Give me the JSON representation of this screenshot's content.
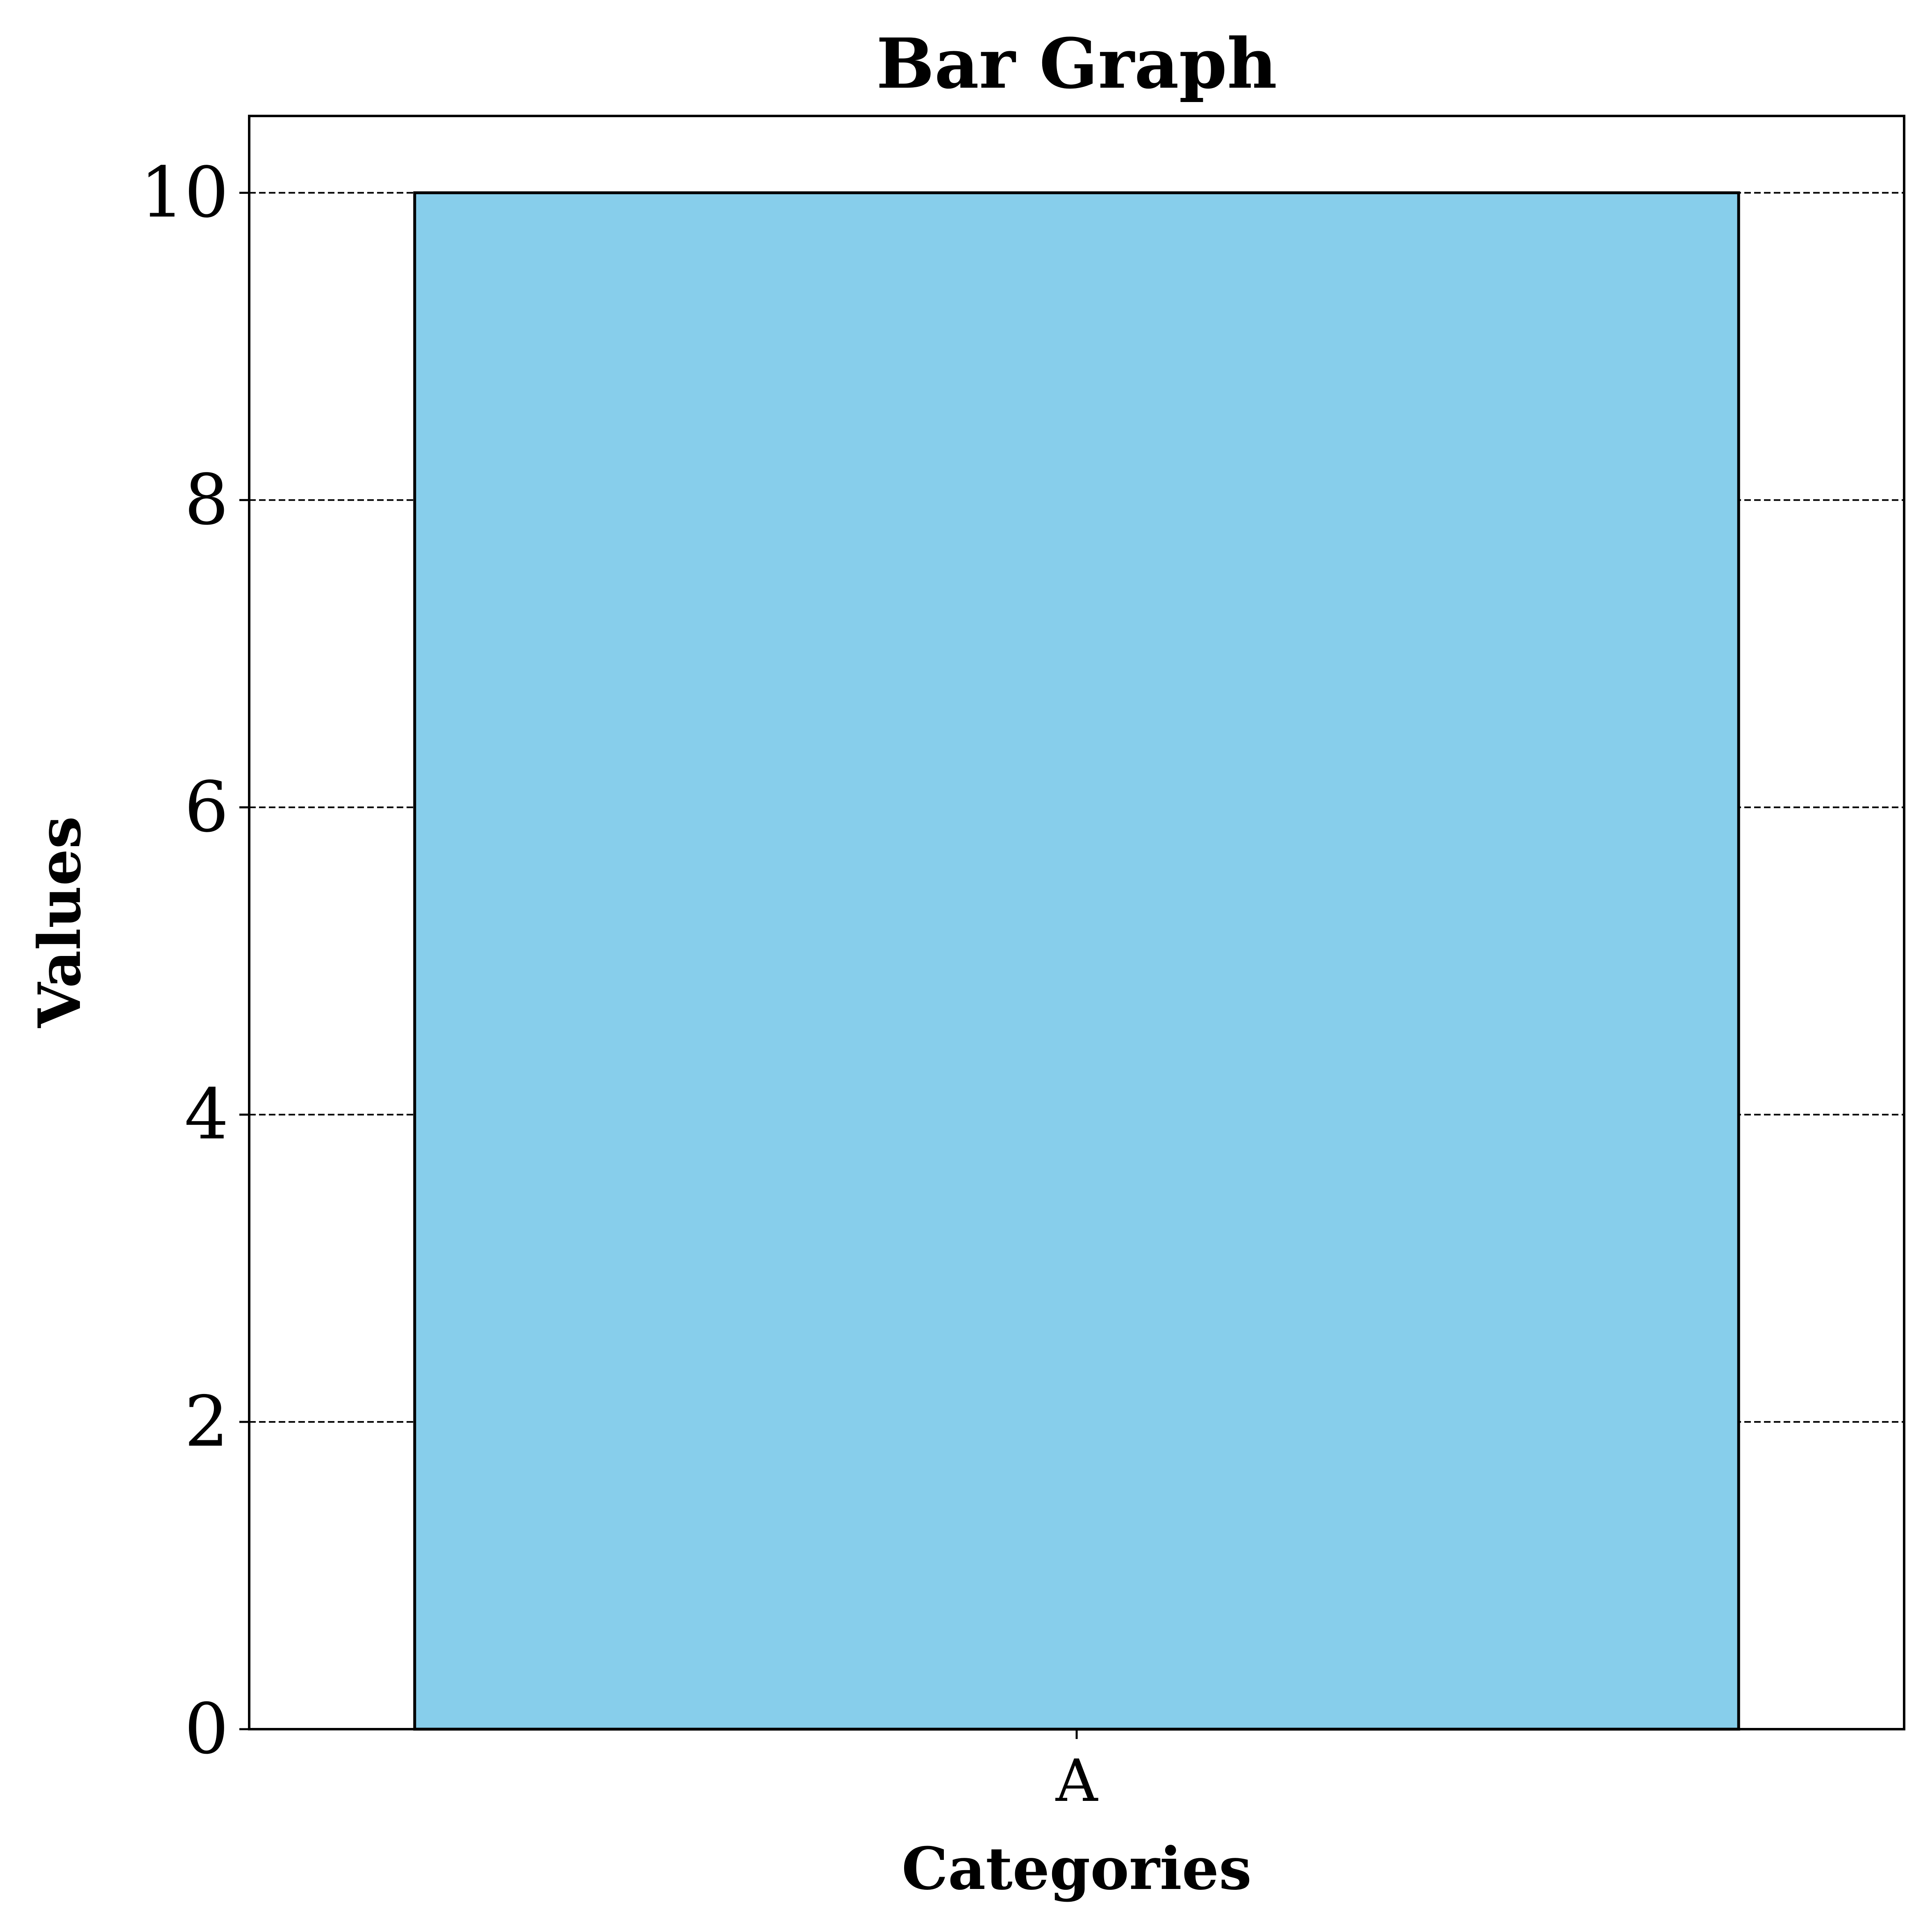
{
  "chart_data": {
    "type": "bar",
    "title": "Bar Graph",
    "xlabel": "Categories",
    "ylabel": "Values",
    "categories": [
      "A"
    ],
    "values": [
      10
    ],
    "ylim": [
      0,
      10.5
    ],
    "yticks": [
      "0",
      "2",
      "4",
      "6",
      "8",
      "10"
    ],
    "grid": "y-dashed",
    "bar_color": "#87CEEB",
    "edge_color": "#000000"
  }
}
